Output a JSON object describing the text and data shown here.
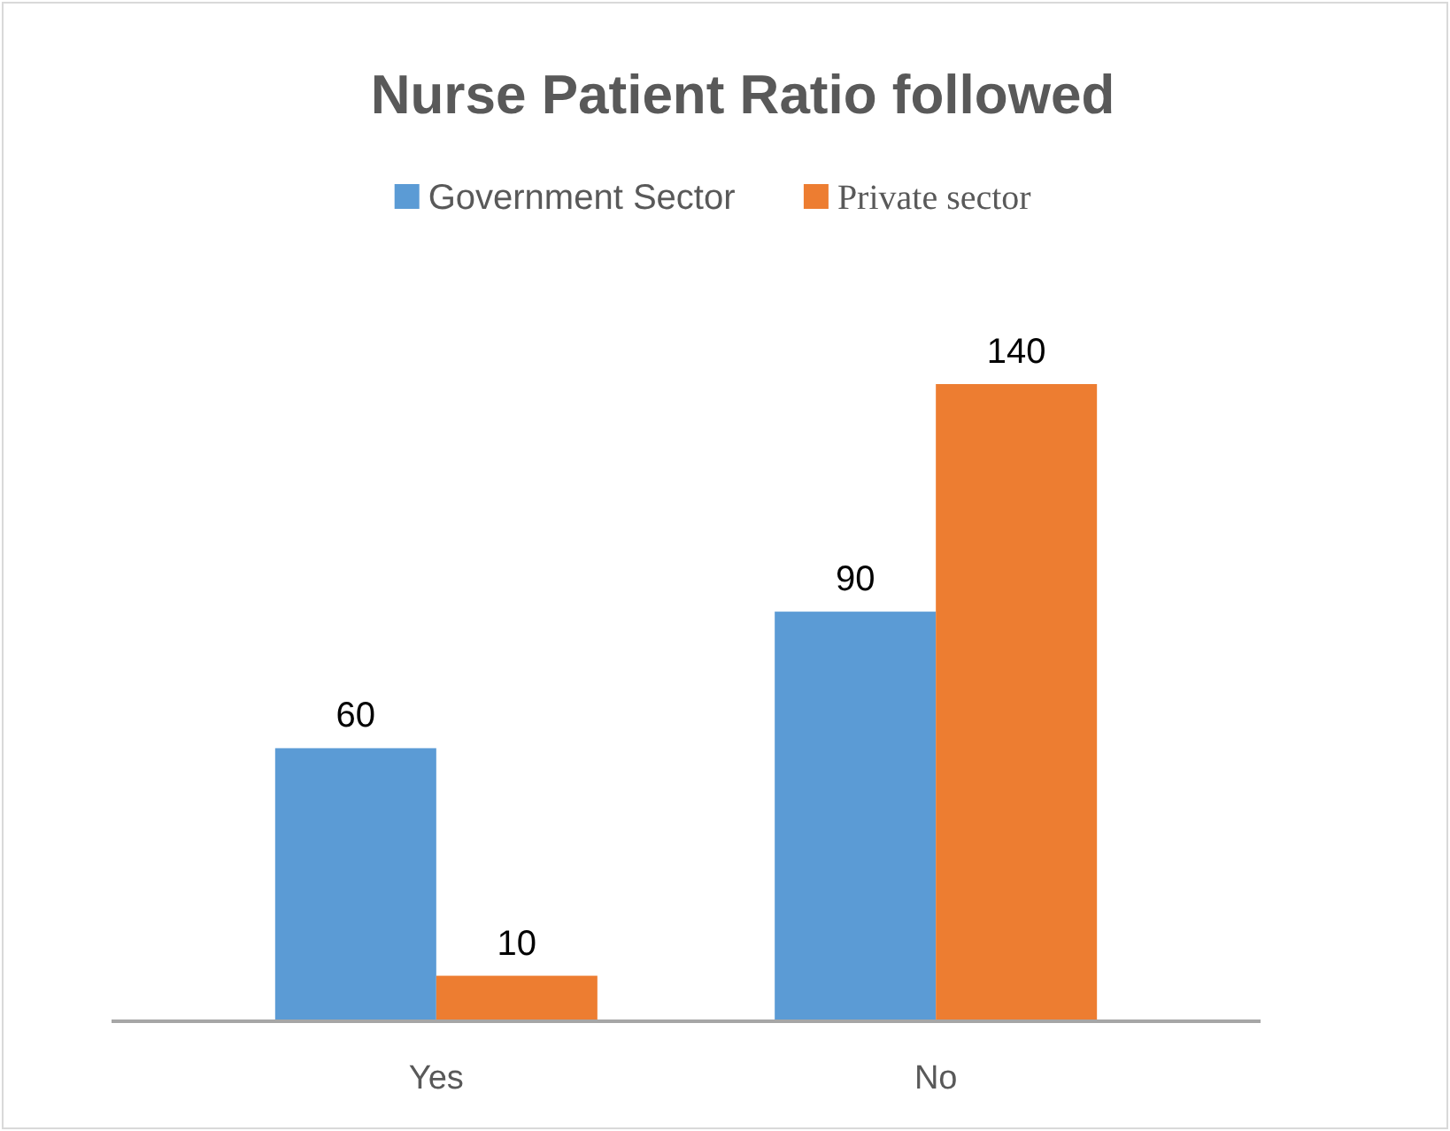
{
  "chart_data": {
    "type": "bar",
    "title": "Nurse Patient Ratio followed",
    "categories": [
      "Yes",
      "No"
    ],
    "series": [
      {
        "name": "Government Sector",
        "color": "#5b9bd5",
        "values": [
          60,
          90
        ]
      },
      {
        "name": "Private sector",
        "color": "#ed7d31",
        "values": [
          10,
          140
        ]
      }
    ],
    "data_labels": true,
    "legend": "top"
  }
}
